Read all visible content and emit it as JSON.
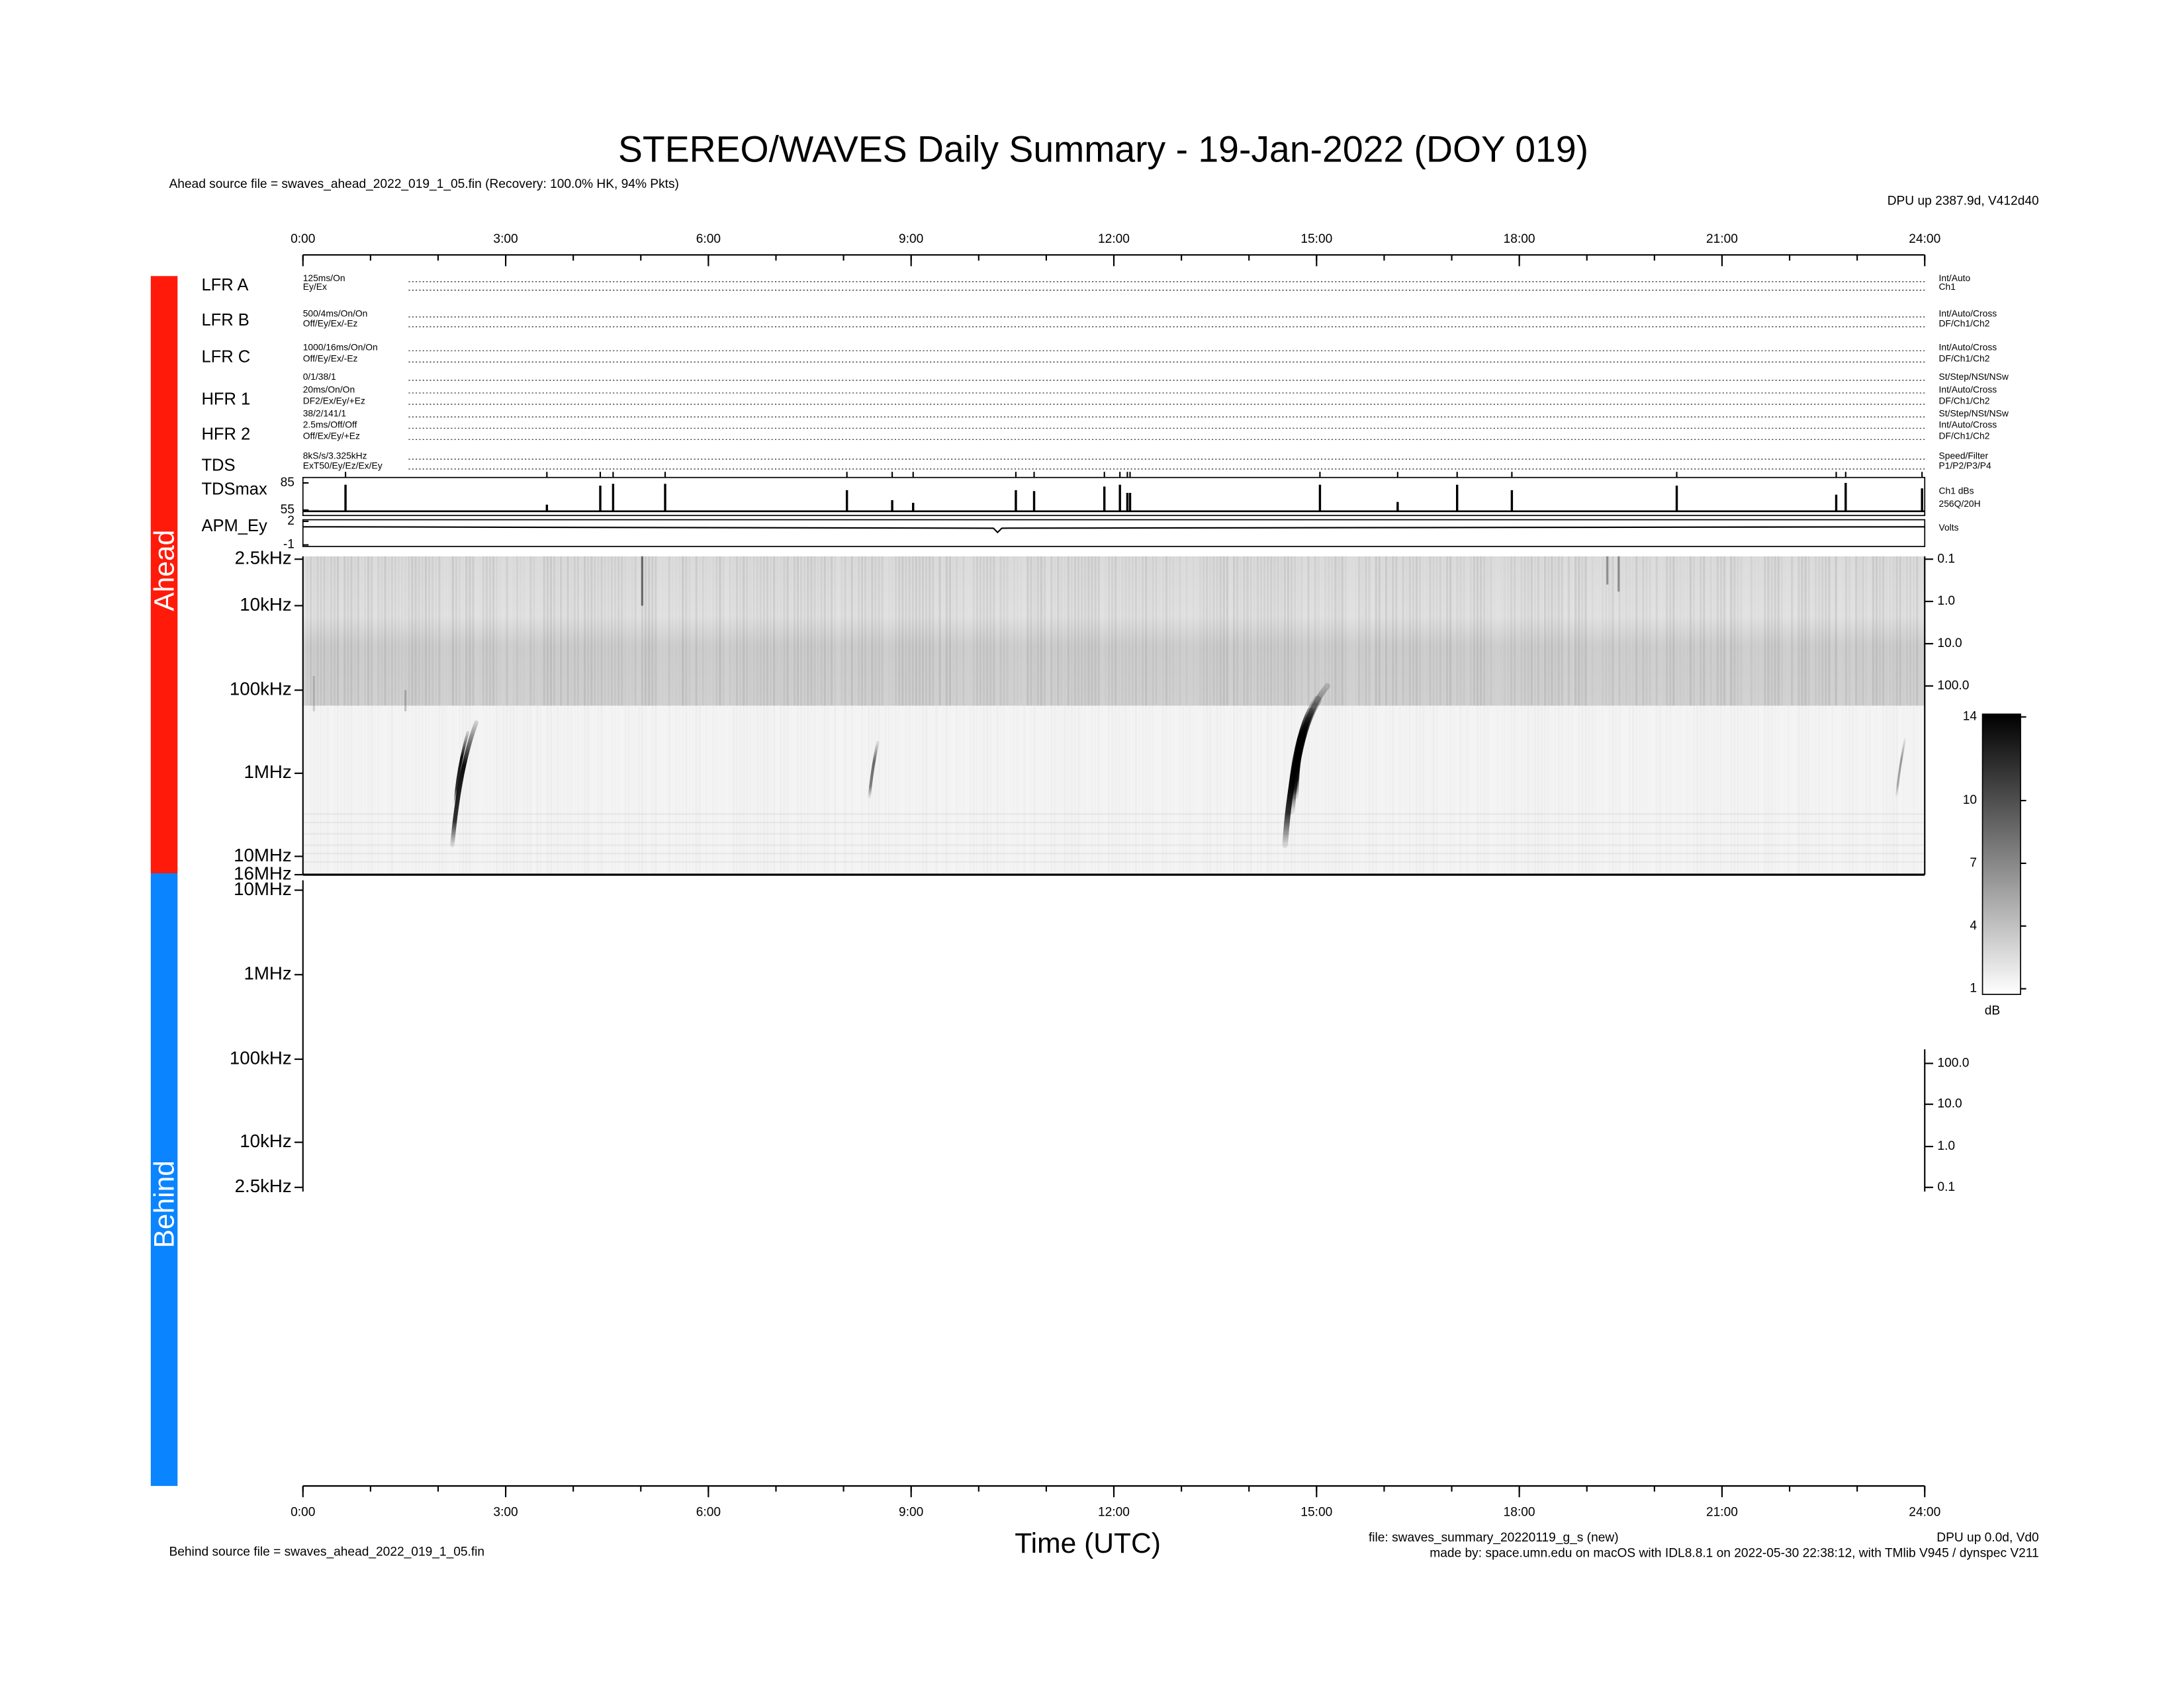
{
  "header": {
    "title": "STEREO/WAVES Daily Summary - 19-Jan-2022 (DOY 019)",
    "ahead_source": "Ahead source file = swaves_ahead_2022_019_1_05.fin (Recovery: 100.0% HK,  94% Pkts)",
    "dpu_ahead": "DPU up 2387.9d, V412d40"
  },
  "time_axis": {
    "ticks": [
      "0:00",
      "3:00",
      "6:00",
      "9:00",
      "12:00",
      "15:00",
      "18:00",
      "21:00",
      "24:00"
    ],
    "label": "Time (UTC)"
  },
  "side": {
    "ahead": "Ahead",
    "behind": "Behind"
  },
  "rows": [
    {
      "label": "LFR A",
      "left": [
        "125ms/On",
        "Ey/Ex"
      ],
      "right": [
        "Int/Auto",
        "Ch1"
      ]
    },
    {
      "label": "LFR B",
      "left": [
        "500/4ms/On/On",
        "Off/Ey/Ex/-Ez"
      ],
      "right": [
        "Int/Auto/Cross",
        "DF/Ch1/Ch2"
      ]
    },
    {
      "label": "LFR C",
      "left": [
        "1000/16ms/On/On",
        "Off/Ey/Ex/-Ez"
      ],
      "right": [
        "Int/Auto/Cross",
        "DF/Ch1/Ch2"
      ]
    },
    {
      "label": "HFR 1",
      "left": [
        "0/1/38/1",
        "20ms/On/On",
        "DF2/Ex/Ey/+Ez"
      ],
      "right": [
        "St/Step/NSt/NSw",
        "Int/Auto/Cross",
        "DF/Ch1/Ch2"
      ]
    },
    {
      "label": "HFR 2",
      "left": [
        "38/2/141/1",
        "2.5ms/Off/Off",
        "Off/Ex/Ey/+Ez"
      ],
      "right": [
        "St/Step/NSt/NSw",
        "Int/Auto/Cross",
        "DF/Ch1/Ch2"
      ]
    },
    {
      "label": "TDS",
      "left": [
        "8kS/s/3.325kHz",
        "ExT50/Ey/Ez/Ex/Ey"
      ],
      "right": [
        "Speed/Filter",
        "P1/P2/P3/P4"
      ]
    }
  ],
  "tdsmax": {
    "label": "TDSmax",
    "ylim": [
      49,
      91
    ],
    "yticks": [
      55,
      85
    ],
    "right": [
      "Ch1 dBs",
      "256Q/20H"
    ],
    "spikes": {
      "x": [
        0.63,
        3.61,
        4.4,
        4.59,
        5.36,
        8.05,
        8.72,
        9.03,
        10.55,
        10.82,
        11.86,
        12.09,
        12.2,
        12.24,
        15.05,
        16.2,
        17.08,
        17.89,
        20.33,
        22.69,
        22.83,
        23.96
      ],
      "values": [
        83,
        61,
        82,
        84,
        84,
        77,
        66,
        63,
        77,
        76,
        81,
        83,
        74,
        74,
        83,
        64,
        83,
        77,
        82,
        72,
        85,
        79
      ]
    }
  },
  "apm": {
    "label": "APM_Ey",
    "ylim": [
      -1.2,
      2.2
    ],
    "yticks": [
      2,
      -1
    ],
    "right": "Volts"
  },
  "ahead_freq": {
    "left": [
      "2.5kHz",
      "10kHz",
      "100kHz",
      "1MHz",
      "10MHz",
      "16MHz"
    ],
    "right": [
      "0.1",
      "1.0",
      "10.0",
      "100.0"
    ]
  },
  "behind_freq": {
    "left": [
      "10MHz",
      "1MHz",
      "100kHz",
      "10kHz",
      "2.5kHz"
    ],
    "right": [
      "100.0",
      "10.0",
      "1.0",
      "0.1"
    ]
  },
  "colorbar": {
    "lim": [
      1,
      14
    ],
    "ticks": [
      14,
      10,
      7,
      4,
      1
    ],
    "unit": "dB"
  },
  "footer": {
    "behind_source": "Behind source file = swaves_ahead_2022_019_1_05.fin",
    "file": "file: swaves_summary_20220119_g_s (new)",
    "dpu_behind": "DPU up 0.0d, Vd0",
    "made_by": "made by: space.umn.edu on macOS with IDL8.8.1 on 2022-05-30 22:38:12, with TMlib V945 / dynspec V211"
  }
}
